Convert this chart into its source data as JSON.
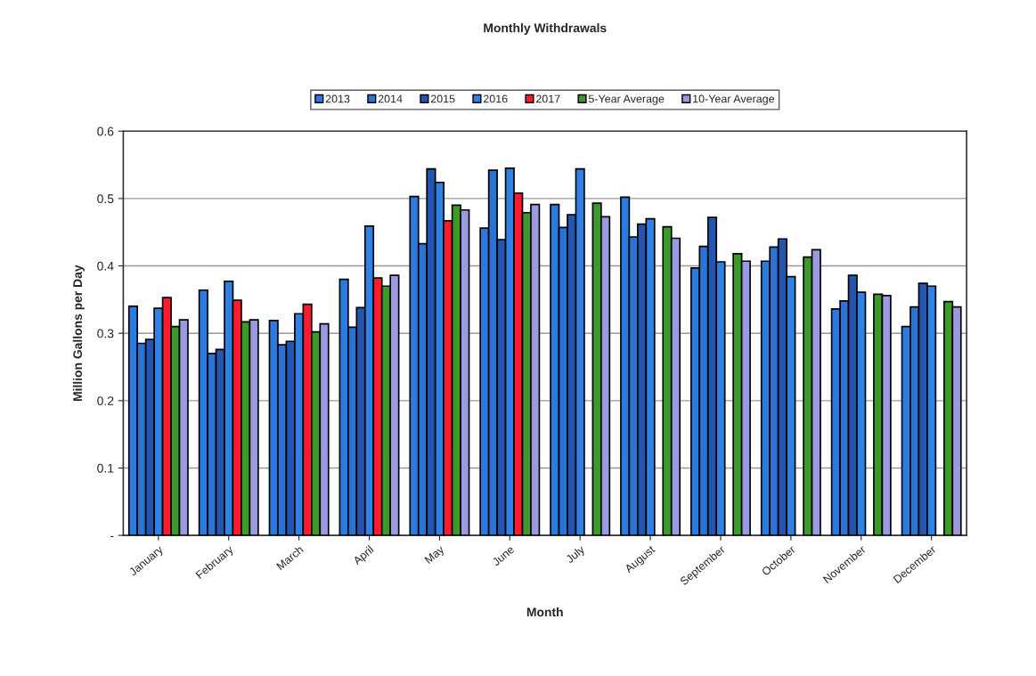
{
  "chart_data": {
    "type": "bar",
    "title": "Monthly Withdrawals",
    "xlabel": "Month",
    "ylabel": "Million Gallons per Day",
    "categories": [
      "January",
      "February",
      "March",
      "April",
      "May",
      "June",
      "July",
      "August",
      "September",
      "October",
      "November",
      "December"
    ],
    "series": [
      {
        "name": "2013",
        "color": "#2a7ae0",
        "values": [
          0.34,
          0.364,
          0.319,
          0.38,
          0.503,
          0.456,
          0.491,
          0.502,
          0.397,
          0.407,
          0.336,
          0.31
        ]
      },
      {
        "name": "2014",
        "color": "#2b74d4",
        "values": [
          0.285,
          0.27,
          0.283,
          0.309,
          0.433,
          0.542,
          0.457,
          0.443,
          0.429,
          0.428,
          0.348,
          0.339
        ]
      },
      {
        "name": "2015",
        "color": "#2456b0",
        "values": [
          0.291,
          0.276,
          0.288,
          0.338,
          0.544,
          0.439,
          0.476,
          0.462,
          0.472,
          0.44,
          0.386,
          0.374
        ]
      },
      {
        "name": "2016",
        "color": "#2f82e4",
        "values": [
          0.337,
          0.377,
          0.329,
          0.459,
          0.524,
          0.545,
          0.544,
          0.47,
          0.406,
          0.384,
          0.361,
          0.37
        ]
      },
      {
        "name": "2017",
        "color": "#ff1a2e",
        "values": [
          0.353,
          0.349,
          0.343,
          0.382,
          0.467,
          0.508,
          null,
          null,
          null,
          null,
          null,
          null
        ]
      },
      {
        "name": "5-Year Average",
        "color": "#3a9a2a",
        "values": [
          0.31,
          0.317,
          0.302,
          0.37,
          0.49,
          0.479,
          0.493,
          0.458,
          0.418,
          0.413,
          0.358,
          0.347
        ]
      },
      {
        "name": "10-Year Average",
        "color": "#9a9ae0",
        "values": [
          0.32,
          0.32,
          0.314,
          0.386,
          0.483,
          0.491,
          0.473,
          0.441,
          0.407,
          0.424,
          0.356,
          0.339
        ]
      }
    ],
    "ylim": [
      0,
      0.6
    ],
    "yticks": [
      {
        "value": 0,
        "label": "-"
      },
      0.1,
      0.2,
      0.3,
      0.4,
      0.5,
      0.6
    ],
    "grid": "y",
    "legend": "top"
  }
}
